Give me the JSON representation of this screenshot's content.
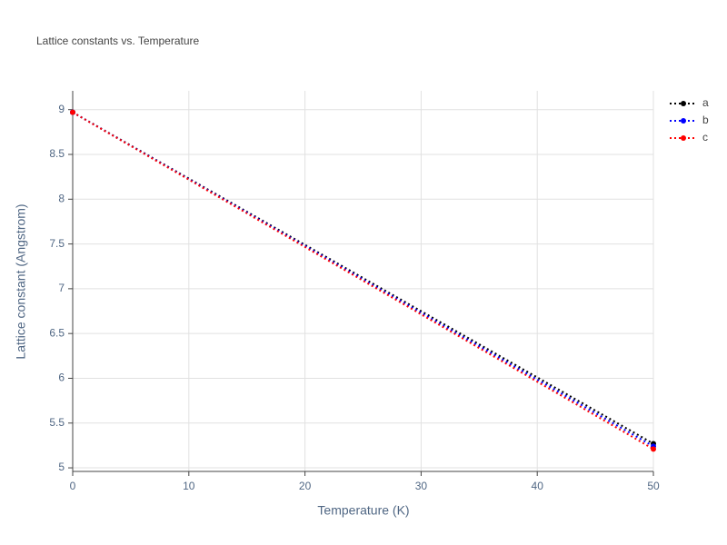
{
  "chart_data": {
    "type": "line",
    "title": "Lattice constants vs. Temperature",
    "x_label": "Temperature (K)",
    "y_label": "Lattice constant (Angstrom)",
    "x": [
      0,
      50
    ],
    "series": [
      {
        "name": "a",
        "color": "#000000",
        "values": [
          8.97,
          5.27
        ]
      },
      {
        "name": "b",
        "color": "#0000ff",
        "values": [
          8.97,
          5.24
        ]
      },
      {
        "name": "c",
        "color": "#ff0000",
        "values": [
          8.97,
          5.21
        ]
      }
    ],
    "xlim": [
      0,
      50
    ],
    "xticks": [
      0,
      10,
      20,
      30,
      40,
      50
    ],
    "ylim": [
      4.96,
      9.21
    ],
    "yticks": [
      5,
      5.5,
      6,
      6.5,
      7,
      7.5,
      8,
      8.5,
      9
    ],
    "grid": true,
    "legend": "top-right"
  }
}
